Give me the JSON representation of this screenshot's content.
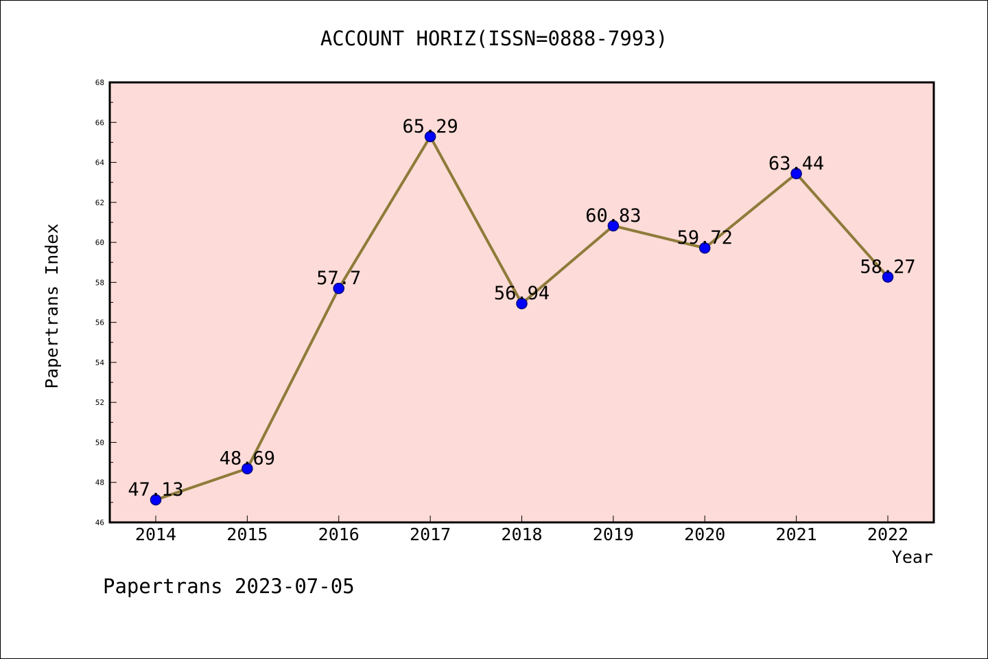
{
  "chart_data": {
    "type": "line",
    "title": "ACCOUNT HORIZ(ISSN=0888-7993)",
    "xlabel": "Year",
    "ylabel": "Papertrans Index",
    "categories": [
      "2014",
      "2015",
      "2016",
      "2017",
      "2018",
      "2019",
      "2020",
      "2021",
      "2022"
    ],
    "series": [
      {
        "values": [
          47.13,
          48.69,
          57.7,
          65.29,
          56.94,
          60.83,
          59.72,
          63.44,
          58.27
        ],
        "labels": [
          "47.13",
          "48.69",
          "57.7",
          "65.29",
          "56.94",
          "60.83",
          "59.72",
          "63.44",
          "58.27"
        ]
      }
    ],
    "ylim": [
      46,
      68
    ],
    "yticks": [
      "46",
      "48",
      "50",
      "52",
      "54",
      "56",
      "58",
      "60",
      "62",
      "64",
      "66",
      "68"
    ],
    "grid": false,
    "legend": "none",
    "footer": "Papertrans 2023-07-05"
  },
  "colors": {
    "plot_background": "#fddbd8",
    "line": "#8e7b3a",
    "marker_fill": "#0000ff",
    "marker_edge": "#000080"
  }
}
